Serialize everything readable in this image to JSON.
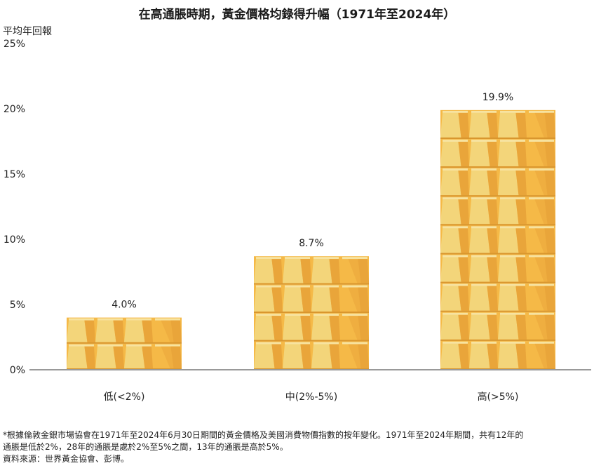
{
  "title": "在高通脹時期，黃金價格均錄得升幅（1971年至2024年）",
  "footnote": {
    "line1": "*根據倫敦金銀市場協會在1971年至2024年6月30日期間的黃金價格及美國消費物價指數的按年變化。1971年至2024年期間，共有12年的",
    "line2": "通脹是低於2%，28年的通脹是處於2%至5%之間，13年的通脹是高於5%。",
    "source": "資料來源：世界黃金協會、彭博。"
  },
  "chart_data": {
    "type": "bar",
    "title": "在高通脹時期，黃金價格均錄得升幅（1971年至2024年）",
    "ylabel": "平均年回報",
    "xlabel": "",
    "categories": [
      "低(<2%)",
      "中(2%-5%)",
      "高(>5%)"
    ],
    "values": [
      4.0,
      8.7,
      19.9
    ],
    "value_labels": [
      "4.0%",
      "8.7%",
      "19.9%"
    ],
    "ylim": [
      0,
      25
    ],
    "yticks": [
      0,
      5,
      10,
      15,
      20,
      25
    ],
    "ytick_labels": [
      "0%",
      "5%",
      "10%",
      "15%",
      "20%",
      "25%"
    ],
    "grid": false,
    "legend": "none",
    "bar_style": "stacked gold bars",
    "colors": {
      "gold_light": "#f3d57a",
      "gold_mid": "#f5b947",
      "gold_dark": "#e9a53a",
      "gold_top": "#f7e3a0",
      "axis": "#999999"
    }
  }
}
